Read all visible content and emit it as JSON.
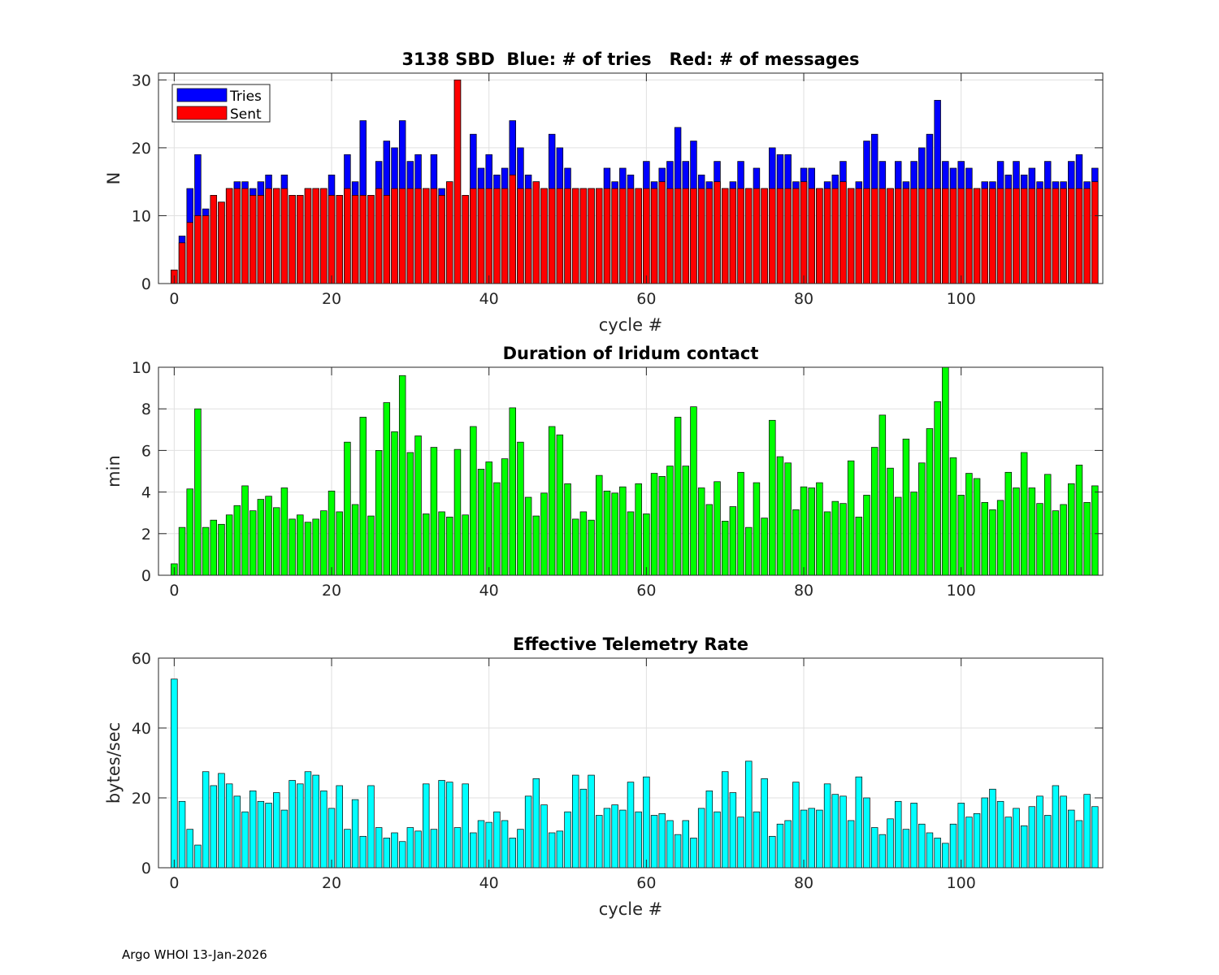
{
  "footer": "Argo WHOI 13-Jan-2026",
  "colors": {
    "tries": "#0000ff",
    "sent": "#ff0000",
    "duration": "#00ff00",
    "rate": "#00ffff",
    "grid": "#e0e0e0",
    "axis": "#262626"
  },
  "chart_data": [
    {
      "type": "bar",
      "title": "3138 SBD  Blue: # of tries   Red: # of messages",
      "xlabel": "cycle #",
      "ylabel": "N",
      "xlim": [
        -2,
        118
      ],
      "ylim": [
        0,
        31
      ],
      "xticks": [
        0,
        20,
        40,
        60,
        80,
        100
      ],
      "yticks": [
        0,
        10,
        20,
        30
      ],
      "grid": true,
      "legend": {
        "location": "top-left",
        "entries": [
          "Tries",
          "Sent"
        ]
      },
      "x_start": 0,
      "series": [
        {
          "name": "Tries",
          "color": "#0000ff",
          "values": [
            2,
            7,
            14,
            19,
            11,
            13,
            12,
            14,
            15,
            15,
            14,
            15,
            16,
            14,
            16,
            13,
            13,
            14,
            14,
            14,
            16,
            13,
            19,
            15,
            24,
            13,
            18,
            21,
            20,
            24,
            18,
            19,
            14,
            19,
            14,
            15,
            30,
            13,
            22,
            17,
            19,
            16,
            17,
            24,
            20,
            16,
            15,
            14,
            22,
            20,
            17,
            14,
            14,
            14,
            14,
            17,
            15,
            17,
            16,
            14,
            18,
            15,
            17,
            18,
            23,
            18,
            21,
            16,
            15,
            18,
            14,
            15,
            18,
            14,
            17,
            14,
            20,
            19,
            19,
            15,
            17,
            17,
            14,
            15,
            16,
            18,
            14,
            15,
            21,
            22,
            18,
            14,
            18,
            15,
            18,
            20,
            22,
            27,
            18,
            17,
            18,
            17,
            14,
            15,
            15,
            18,
            16,
            18,
            16,
            17,
            15,
            18,
            15,
            15,
            18,
            19,
            15,
            17
          ]
        },
        {
          "name": "Sent",
          "color": "#ff0000",
          "values": [
            2,
            6,
            9,
            10,
            10,
            13,
            12,
            14,
            14,
            14,
            13,
            13,
            14,
            14,
            14,
            13,
            13,
            14,
            14,
            14,
            13,
            13,
            14,
            13,
            13,
            13,
            14,
            13,
            14,
            14,
            14,
            14,
            14,
            14,
            13,
            15,
            30,
            13,
            14,
            14,
            14,
            14,
            14,
            16,
            14,
            14,
            15,
            14,
            14,
            14,
            14,
            14,
            14,
            14,
            14,
            14,
            14,
            14,
            14,
            14,
            14,
            14,
            15,
            14,
            14,
            14,
            14,
            14,
            14,
            15,
            14,
            14,
            14,
            14,
            14,
            14,
            14,
            14,
            14,
            14,
            15,
            14,
            14,
            14,
            14,
            15,
            14,
            14,
            14,
            14,
            14,
            14,
            14,
            14,
            14,
            14,
            14,
            14,
            14,
            14,
            14,
            14,
            14,
            14,
            14,
            14,
            14,
            14,
            14,
            14,
            14,
            14,
            14,
            14,
            14,
            14,
            14,
            15
          ]
        }
      ]
    },
    {
      "type": "bar",
      "title": "Duration of Iridum contact",
      "xlabel": "",
      "ylabel": "min",
      "xlim": [
        -2,
        118
      ],
      "ylim": [
        0,
        10
      ],
      "xticks": [
        0,
        20,
        40,
        60,
        80,
        100
      ],
      "yticks": [
        0,
        2,
        4,
        6,
        8,
        10
      ],
      "grid": true,
      "x_start": 0,
      "series": [
        {
          "name": "Duration",
          "color": "#00ff00",
          "values": [
            0.55,
            2.3,
            4.15,
            8.0,
            2.3,
            2.65,
            2.45,
            2.9,
            3.35,
            4.3,
            3.1,
            3.65,
            3.8,
            3.25,
            4.2,
            2.7,
            2.9,
            2.55,
            2.7,
            3.1,
            4.05,
            3.05,
            6.4,
            3.4,
            7.6,
            2.85,
            6.0,
            8.3,
            6.9,
            9.6,
            5.9,
            6.7,
            2.95,
            6.15,
            3.05,
            2.8,
            6.05,
            2.9,
            7.15,
            5.1,
            5.45,
            4.45,
            5.6,
            8.05,
            6.4,
            3.75,
            2.85,
            3.95,
            7.15,
            6.75,
            4.4,
            2.7,
            3.05,
            2.65,
            4.8,
            4.05,
            3.95,
            4.25,
            3.05,
            4.4,
            2.95,
            4.9,
            4.75,
            5.25,
            7.6,
            5.25,
            8.1,
            4.2,
            3.4,
            4.5,
            2.6,
            3.3,
            4.95,
            2.3,
            4.45,
            2.75,
            7.45,
            5.7,
            5.4,
            3.15,
            4.25,
            4.2,
            4.45,
            3.05,
            3.55,
            3.45,
            5.5,
            2.8,
            3.85,
            6.15,
            7.7,
            5.15,
            3.75,
            6.55,
            4.0,
            5.4,
            7.05,
            8.35,
            10.0,
            5.65,
            3.85,
            4.9,
            4.65,
            3.5,
            3.15,
            3.6,
            4.95,
            4.2,
            5.9,
            4.2,
            3.45,
            4.85,
            3.1,
            3.4,
            4.4,
            5.3,
            3.5,
            4.3
          ]
        }
      ]
    },
    {
      "type": "bar",
      "title": "Effective Telemetry Rate",
      "xlabel": "cycle #",
      "ylabel": "bytes/sec",
      "xlim": [
        -2,
        118
      ],
      "ylim": [
        0,
        60
      ],
      "xticks": [
        0,
        20,
        40,
        60,
        80,
        100
      ],
      "yticks": [
        0,
        20,
        40,
        60
      ],
      "grid": true,
      "x_start": 0,
      "series": [
        {
          "name": "Rate",
          "color": "#00ffff",
          "values": [
            54,
            19,
            11,
            6.5,
            27.5,
            23.5,
            27,
            24,
            20.5,
            16,
            22,
            19,
            18.5,
            21.5,
            16.5,
            25,
            24,
            27.5,
            26.5,
            22,
            17,
            23.5,
            11,
            19.5,
            9,
            23.5,
            11.5,
            8.5,
            10,
            7.5,
            11.5,
            10.5,
            24,
            11,
            25,
            24.5,
            11.5,
            24,
            10,
            13.5,
            13,
            16,
            13.5,
            8.5,
            11,
            20.5,
            25.5,
            18,
            10,
            10.5,
            16,
            26.5,
            22.5,
            26.5,
            15,
            17,
            18,
            16.5,
            24.5,
            16,
            26,
            15,
            15.5,
            13.5,
            9.5,
            13.5,
            8.5,
            17,
            22,
            16,
            27.5,
            21.5,
            14.5,
            30.5,
            16,
            25.5,
            9,
            12.5,
            13.5,
            24.5,
            16.5,
            17,
            16.5,
            24,
            21,
            20.5,
            13.5,
            26,
            20,
            11.5,
            9.5,
            14,
            19,
            11,
            18.5,
            12.5,
            10,
            8.5,
            7,
            12.5,
            18.5,
            14.5,
            15.5,
            20,
            22.5,
            19,
            14.5,
            17,
            12,
            17.5,
            20.5,
            15,
            23.5,
            20.5,
            16.5,
            13.5,
            21,
            17.5
          ]
        }
      ]
    }
  ]
}
